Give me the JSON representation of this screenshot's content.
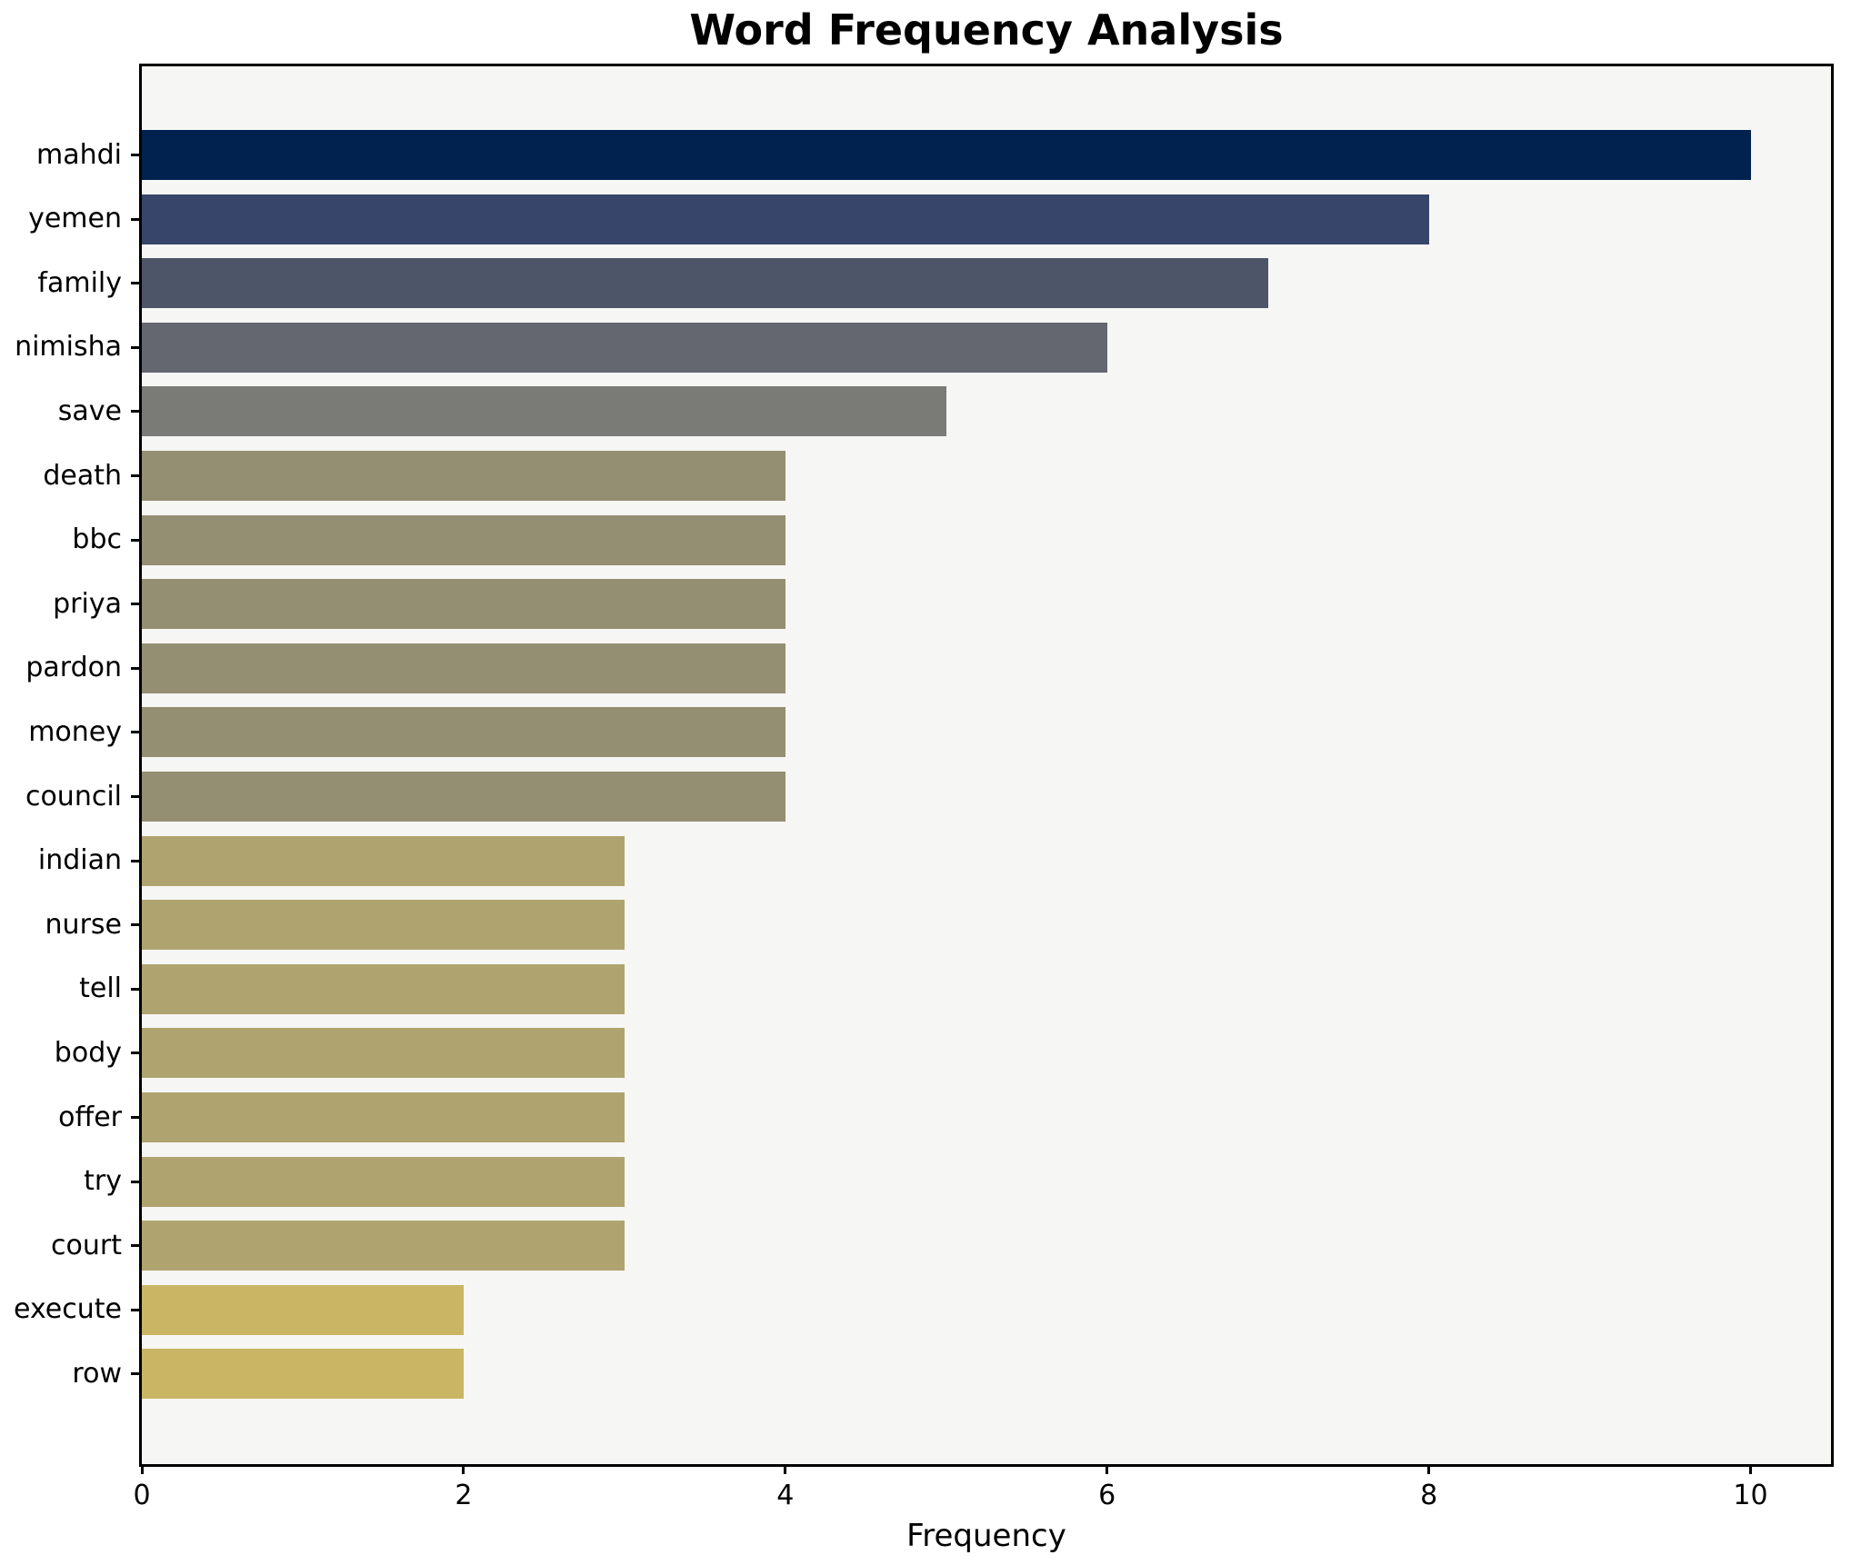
{
  "chart_data": {
    "type": "bar",
    "orientation": "horizontal",
    "title": "Word Frequency Analysis",
    "xlabel": "Frequency",
    "ylabel": "",
    "categories": [
      "mahdi",
      "yemen",
      "family",
      "nimisha",
      "save",
      "death",
      "bbc",
      "priya",
      "pardon",
      "money",
      "council",
      "indian",
      "nurse",
      "tell",
      "body",
      "offer",
      "try",
      "court",
      "execute",
      "row"
    ],
    "values": [
      10,
      8,
      7,
      6,
      5,
      4,
      4,
      4,
      4,
      4,
      4,
      3,
      3,
      3,
      3,
      3,
      3,
      3,
      2,
      2
    ],
    "bar_colors": [
      "#01224e",
      "#364569",
      "#4d5669",
      "#646770",
      "#7a7a76",
      "#948f73",
      "#948f73",
      "#948f73",
      "#948f73",
      "#948f73",
      "#948f73",
      "#afa46f",
      "#afa46f",
      "#afa46f",
      "#afa46f",
      "#afa46f",
      "#afa46f",
      "#afa46f",
      "#c9b564",
      "#c9b564"
    ],
    "xticks": [
      0,
      2,
      4,
      6,
      8,
      10
    ],
    "xlim": [
      0,
      10.5
    ],
    "grid": false,
    "legend_position": "none",
    "colors": {
      "plot_background": "#f6f6f4",
      "figure_background": "#ffffff",
      "axis": "#000000",
      "text": "#000000"
    }
  }
}
